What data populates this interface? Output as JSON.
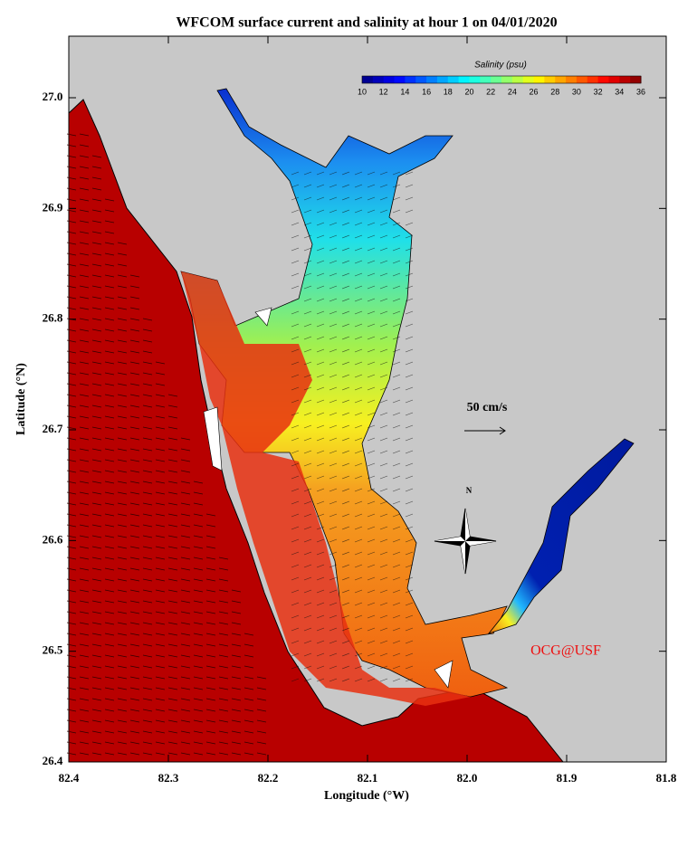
{
  "title": "WFCOM surface current and salinity at hour 1 on 04/01/2020",
  "x_axis": {
    "label": "Longitude (°W)",
    "ticks": [
      "82.4",
      "82.3",
      "82.2",
      "82.1",
      "82.0",
      "81.9",
      "81.8"
    ]
  },
  "y_axis": {
    "label": "Latitude (°N)",
    "ticks": [
      "27.0",
      "26.9",
      "26.8",
      "26.7",
      "26.6",
      "26.5",
      "26.4"
    ]
  },
  "colorbar": {
    "title": "Salinity (psu)",
    "ticks": [
      10,
      12,
      14,
      16,
      18,
      20,
      22,
      24,
      26,
      28,
      30,
      32,
      34,
      36
    ]
  },
  "scale_label": "50 cm/s",
  "compass_label": "N",
  "credit": "OCG@USF"
}
